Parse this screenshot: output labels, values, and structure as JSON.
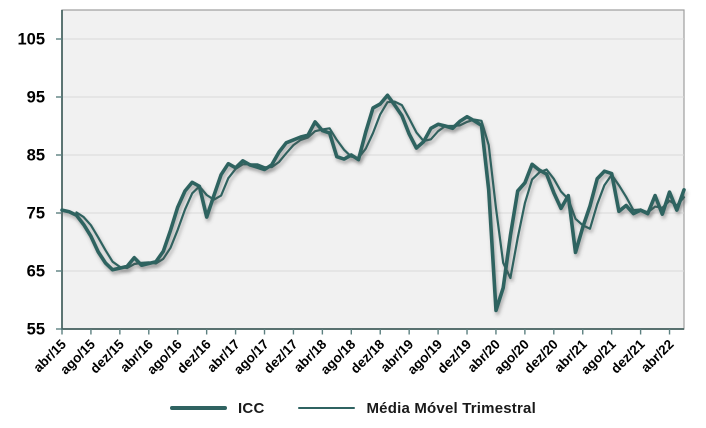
{
  "chart_data": {
    "type": "line",
    "title": "",
    "x_start": "abr/15",
    "x_end": "jun/22",
    "x_step": "1 month",
    "x_tick_every_months": 4,
    "x_tick_labels": [
      "abr/15",
      "ago/15",
      "dez/15",
      "abr/16",
      "ago/16",
      "dez/16",
      "abr/17",
      "ago/17",
      "dez/17",
      "abr/18",
      "ago/18",
      "dez/18",
      "abr/19",
      "ago/19",
      "dez/19",
      "abr/20",
      "ago/20",
      "dez/20",
      "abr/21",
      "ago/21",
      "dez/21",
      "abr/22"
    ],
    "y_tick_labels": [
      "55",
      "65",
      "75",
      "85",
      "95",
      "105"
    ],
    "y_ticks": [
      55,
      65,
      75,
      85,
      95,
      105
    ],
    "ylim": [
      55,
      110
    ],
    "grid": "horizontal",
    "legend_position": "bottom-center",
    "series": [
      {
        "name": "ICC",
        "stroke_width": 3.6,
        "start_index": 0,
        "values": [
          75.5,
          75.2,
          74.6,
          73.0,
          71.0,
          68.3,
          66.4,
          65.2,
          65.5,
          65.8,
          67.3,
          66.0,
          66.3,
          66.6,
          68.4,
          72.0,
          76.0,
          78.8,
          80.3,
          79.6,
          74.3,
          78.0,
          81.6,
          83.5,
          82.8,
          84.0,
          83.3,
          82.9,
          82.5,
          83.3,
          85.5,
          87.1,
          87.6,
          88.1,
          88.4,
          90.7,
          89.2,
          88.8,
          84.7,
          84.3,
          85.0,
          84.2,
          89.0,
          93.1,
          93.8,
          95.3,
          93.6,
          91.8,
          88.6,
          86.2,
          87.3,
          89.6,
          90.3,
          90.0,
          89.6,
          90.8,
          91.6,
          90.9,
          90.1,
          79.0,
          58.2,
          62.1,
          71.1,
          78.8,
          80.2,
          83.4,
          82.4,
          81.7,
          78.5,
          75.8,
          78.0,
          68.2,
          72.5,
          76.2,
          80.9,
          82.2,
          81.8,
          75.3,
          76.3,
          74.9,
          75.5,
          74.9,
          78.0,
          74.8,
          78.6,
          75.5,
          79.0
        ]
      },
      {
        "name": "Média Móvel Trimestral",
        "stroke_width": 2.2,
        "start_index": 2,
        "values": [
          75.1,
          74.3,
          72.9,
          70.8,
          68.6,
          66.6,
          65.7,
          65.5,
          66.2,
          66.4,
          66.5,
          66.3,
          67.1,
          69.0,
          72.1,
          75.6,
          78.4,
          79.6,
          78.1,
          77.3,
          78.0,
          81.0,
          82.6,
          83.4,
          83.4,
          83.4,
          82.9,
          82.9,
          83.8,
          85.3,
          86.7,
          87.6,
          88.0,
          89.1,
          89.4,
          89.6,
          87.6,
          85.9,
          84.7,
          84.5,
          86.1,
          88.8,
          92.0,
          94.1,
          94.2,
          93.6,
          91.3,
          88.9,
          87.4,
          87.7,
          89.1,
          90.0,
          90.0,
          90.1,
          90.7,
          91.1,
          90.9,
          86.7,
          75.8,
          66.4,
          63.8,
          70.7,
          76.7,
          80.8,
          82.0,
          82.5,
          80.9,
          78.7,
          77.4,
          74.0,
          72.9,
          72.3,
          76.5,
          79.8,
          81.6,
          79.8,
          77.8,
          75.5,
          75.6,
          75.1,
          76.1,
          75.9,
          77.1,
          76.3,
          77.7
        ]
      }
    ],
    "colors": {
      "line": "#2f6361",
      "plot_bg": "#f1f1f1",
      "grid": "#d9d9d9",
      "plot_border": "#9e9e9e",
      "axis": "#44615f",
      "tick": "#5c8080",
      "label": "#000000"
    }
  },
  "legend": {
    "icc": "ICC",
    "ma": "Média Móvel Trimestral"
  }
}
